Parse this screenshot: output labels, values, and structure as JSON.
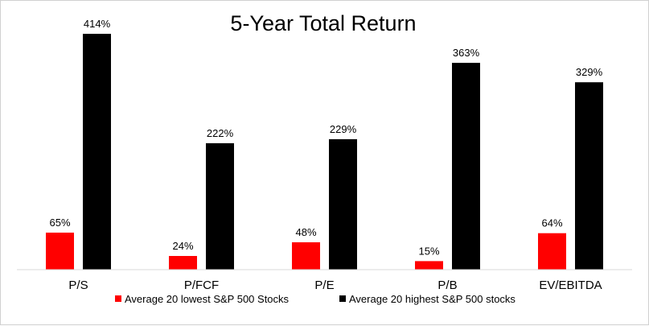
{
  "chart_data": {
    "type": "bar",
    "title": "5-Year Total Return",
    "xlabel": "",
    "ylabel": "",
    "categories": [
      "P/S",
      "P/FCF",
      "P/E",
      "P/B",
      "EV/EBITDA"
    ],
    "series": [
      {
        "name": "Average 20 lowest S&P 500 Stocks",
        "values": [
          65,
          24,
          48,
          15,
          64
        ],
        "labels": [
          "65%",
          "24%",
          "48%",
          "15%",
          "64%"
        ],
        "color": "#ff0000"
      },
      {
        "name": "Average 20 highest S&P 500 stocks",
        "values": [
          414,
          222,
          229,
          363,
          329
        ],
        "labels": [
          "414%",
          "222%",
          "229%",
          "363%",
          "329%"
        ],
        "color": "#000000"
      }
    ],
    "ylim": [
      0,
      414
    ],
    "grid": false,
    "legend": "bottom"
  }
}
